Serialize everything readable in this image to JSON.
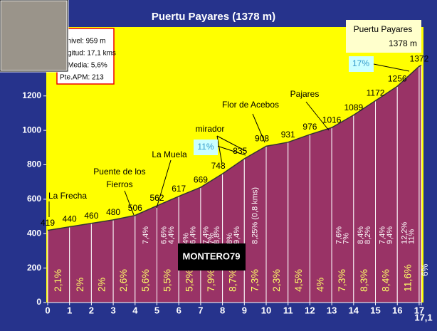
{
  "chart_data": {
    "type": "area",
    "title": "Puertu Payares (1378 m)",
    "x": [
      0,
      1,
      2,
      3,
      4,
      5,
      6,
      7,
      8,
      9,
      10,
      11,
      12,
      13,
      14,
      15,
      16,
      17,
      17.1
    ],
    "values": [
      419,
      440,
      460,
      480,
      506,
      562,
      617,
      669,
      748,
      835,
      908,
      931,
      976,
      1016,
      1089,
      1172,
      1256,
      1372,
      1378
    ],
    "gradients": [
      2.1,
      2,
      2,
      2.6,
      5.6,
      5.5,
      5.2,
      7.9,
      8.7,
      7.3,
      2.3,
      4.5,
      4,
      7.3,
      8.3,
      8.4,
      11.6,
      6
    ],
    "gradient_labels": [
      "2,1%",
      "2%",
      "2%",
      "2,6%",
      "5,6%",
      "5,5%",
      "5,2%",
      "7,9%",
      "8,7%",
      "7,3%",
      "2,3%",
      "4,5%",
      "4%",
      "7,3%",
      "8,3%",
      "8,4%",
      "11,6%",
      "6%"
    ],
    "segment_notes": [
      [],
      [],
      [],
      [],
      [
        "7,4%"
      ],
      [
        "6,6%",
        "4,4%"
      ],
      [
        "4%",
        "6,4%"
      ],
      [
        "7,4%",
        "7%",
        "8,8%"
      ],
      [
        "8%",
        "9,4%"
      ],
      [
        "8,25% (0,8 kms)"
      ],
      [],
      [],
      [],
      [
        "7,6%",
        "7%"
      ],
      [
        "8,4%",
        "8,2%"
      ],
      [
        "7,4%",
        "9,4%"
      ],
      [
        "12,2%",
        "11%"
      ]
    ],
    "xlim": [
      0,
      17.1
    ],
    "ylim": [
      0,
      1600
    ],
    "xticks": [
      0,
      1,
      2,
      3,
      4,
      5,
      6,
      7,
      8,
      9,
      10,
      11,
      12,
      13,
      14,
      15,
      16,
      17,
      {
        "value": 17.1,
        "label": "17,1"
      }
    ],
    "yticks": [
      0,
      200,
      400,
      600,
      800,
      1000,
      1200
    ],
    "fill_color": "#993366",
    "sky_color": "#ffff00",
    "info": [
      "esnivel: 959 m",
      "ongitud: 17,1 kms",
      "te.Media: 5,6%",
      "Pte.APM: 213"
    ],
    "places": [
      "La Frecha",
      "Puente de los",
      "Fierros",
      "La Muela",
      "mirador",
      "Flor de Acebos",
      "Pajares",
      "Puertu Payares",
      "1378 m"
    ],
    "max_gradients": [
      "11%",
      "17%"
    ],
    "watermark": "MONTERO79"
  }
}
